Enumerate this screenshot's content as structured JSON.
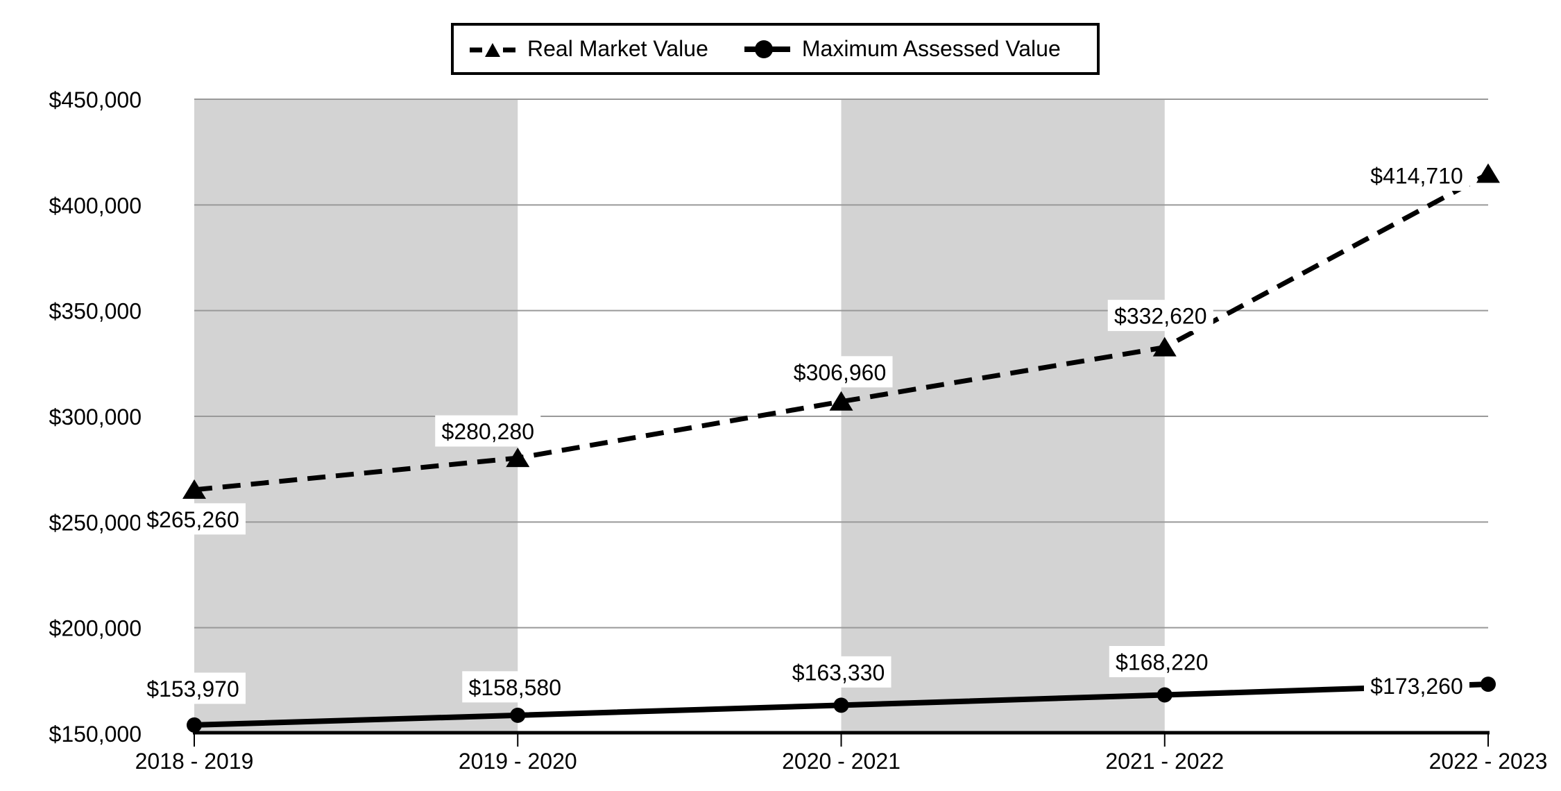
{
  "chart_data": {
    "type": "line",
    "title": "",
    "xlabel": "",
    "ylabel": "",
    "categories": [
      "2018 - 2019",
      "2019 - 2020",
      "2020 - 2021",
      "2021 - 2022",
      "2022 - 2023"
    ],
    "series": [
      {
        "name": "Real Market Value",
        "values": [
          265260,
          280280,
          306960,
          332620,
          414710
        ],
        "labels": [
          "$265,260",
          "$280,280",
          "$306,960",
          "$332,620",
          "$414,710"
        ],
        "line_style": "dashed",
        "marker": "triangle",
        "color": "#000000"
      },
      {
        "name": "Maximum Assessed Value",
        "values": [
          153970,
          158580,
          163330,
          168220,
          173260
        ],
        "labels": [
          "$153,970",
          "$158,580",
          "$163,330",
          "$168,220",
          "$173,260"
        ],
        "line_style": "solid",
        "marker": "circle",
        "color": "#000000"
      }
    ],
    "ylim": [
      150000,
      450000
    ],
    "ytick_step": 50000,
    "ytick_labels": [
      "$150,000",
      "$200,000",
      "$250,000",
      "$300,000",
      "$350,000",
      "$400,000",
      "$450,000"
    ],
    "grid": "horizontal-gridlines-on",
    "legend_position": "top",
    "shaded_band_pairs": [
      [
        0,
        1
      ],
      [
        2,
        3
      ]
    ],
    "colors": {
      "series": "#000000",
      "gridline": "#999999",
      "band": "#d3d3d3",
      "axis": "#000000",
      "label_background": "#ffffff",
      "background": "#ffffff"
    }
  }
}
